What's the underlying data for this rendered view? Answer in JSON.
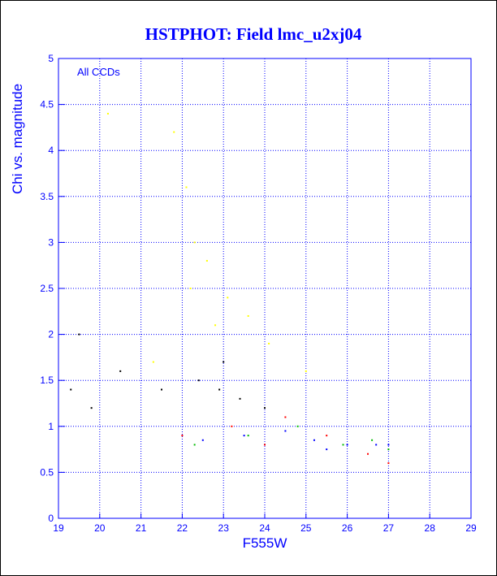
{
  "chart_data": {
    "type": "scatter",
    "title": "HSTPHOT: Field lmc_u2xj04",
    "xlabel": "F555W",
    "ylabel": "Chi vs. magnitude",
    "annotation": "All CCDs",
    "xlim": [
      19,
      29
    ],
    "ylim": [
      0,
      5
    ],
    "xticks": [
      "19",
      "20",
      "21",
      "22",
      "23",
      "24",
      "25",
      "26",
      "27",
      "28",
      "29"
    ],
    "yticks": [
      "0",
      "0.5",
      "1",
      "1.5",
      "2",
      "2.5",
      "3",
      "3.5",
      "4",
      "4.5",
      "5"
    ],
    "grid": true,
    "series": [
      {
        "color": "#ffff00",
        "values": [
          [
            21.8,
            4.2
          ],
          [
            22.1,
            3.6
          ],
          [
            22.3,
            3.0
          ],
          [
            22.6,
            2.8
          ],
          [
            23.1,
            2.4
          ],
          [
            23.6,
            2.2
          ],
          [
            24.1,
            1.9
          ],
          [
            22.2,
            2.5
          ],
          [
            22.8,
            2.1
          ],
          [
            25.0,
            1.6
          ],
          [
            21.3,
            1.7
          ],
          [
            20.2,
            4.4
          ]
        ]
      },
      {
        "color": "#000000",
        "values": [
          [
            19.3,
            1.4
          ],
          [
            19.8,
            1.2
          ],
          [
            20.5,
            1.6
          ],
          [
            21.5,
            1.4
          ],
          [
            22.4,
            1.5
          ],
          [
            22.9,
            1.4
          ],
          [
            23.4,
            1.3
          ],
          [
            24.0,
            1.2
          ],
          [
            23.0,
            1.7
          ],
          [
            19.5,
            2.0
          ]
        ]
      },
      {
        "color": "#ff0000",
        "values": [
          [
            22.0,
            0.9
          ],
          [
            23.2,
            1.0
          ],
          [
            24.5,
            1.1
          ],
          [
            25.5,
            0.9
          ],
          [
            26.5,
            0.7
          ],
          [
            27.0,
            0.6
          ],
          [
            24.0,
            0.8
          ]
        ]
      },
      {
        "color": "#00bb00",
        "values": [
          [
            22.3,
            0.8
          ],
          [
            23.6,
            0.9
          ],
          [
            24.8,
            1.0
          ],
          [
            25.9,
            0.8
          ],
          [
            26.6,
            0.85
          ],
          [
            27.0,
            0.75
          ]
        ]
      },
      {
        "color": "#0000ff",
        "values": [
          [
            22.5,
            0.85
          ],
          [
            23.5,
            0.9
          ],
          [
            24.5,
            0.95
          ],
          [
            25.2,
            0.85
          ],
          [
            26.0,
            0.8
          ],
          [
            26.7,
            0.8
          ],
          [
            27.0,
            0.8
          ],
          [
            25.5,
            0.75
          ]
        ]
      }
    ]
  }
}
